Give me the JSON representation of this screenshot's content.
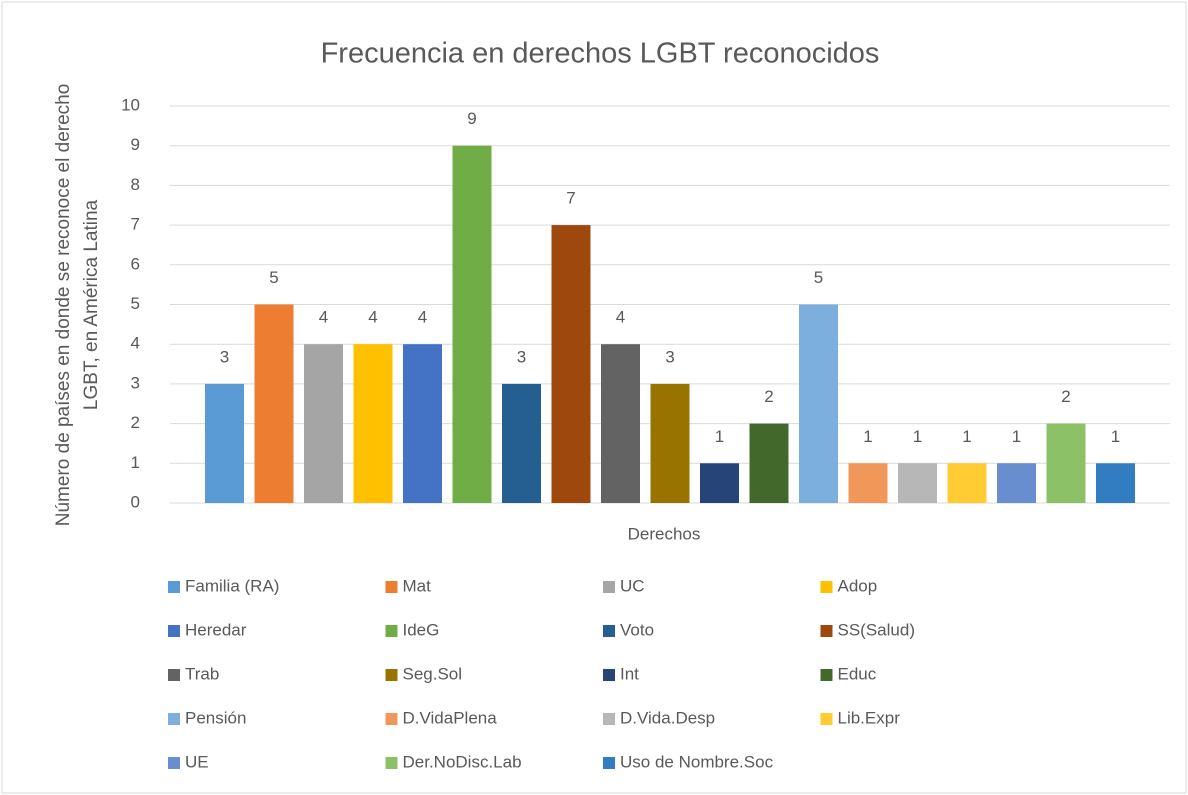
{
  "chart_data": {
    "type": "bar",
    "title": "Frecuencia en derechos LGBT reconocidos",
    "xlabel": "Derechos",
    "ylabel": [
      "Número de países en donde se reconoce el derecho",
      "LGBT, en América Latina"
    ],
    "ylim": [
      0,
      10
    ],
    "yticks": [
      0,
      1,
      2,
      3,
      4,
      5,
      6,
      7,
      8,
      9,
      10
    ],
    "grid": true,
    "legend": "bottom",
    "series": [
      {
        "name": "Familia (RA)",
        "color": "#5b9bd5",
        "values": [
          3
        ]
      },
      {
        "name": "Mat",
        "color": "#ed7d31",
        "values": [
          5
        ]
      },
      {
        "name": "UC",
        "color": "#a5a5a5",
        "values": [
          4
        ]
      },
      {
        "name": "Adop",
        "color": "#ffc000",
        "values": [
          4
        ]
      },
      {
        "name": "Heredar",
        "color": "#4472c4",
        "values": [
          4
        ]
      },
      {
        "name": "IdeG",
        "color": "#70ad47",
        "values": [
          9
        ]
      },
      {
        "name": "Voto",
        "color": "#255e91",
        "values": [
          3
        ]
      },
      {
        "name": "SS(Salud)",
        "color": "#9e480e",
        "values": [
          7
        ]
      },
      {
        "name": "Trab",
        "color": "#636363",
        "values": [
          4
        ]
      },
      {
        "name": "Seg.Sol",
        "color": "#997300",
        "values": [
          3
        ]
      },
      {
        "name": "Int",
        "color": "#264478",
        "values": [
          1
        ]
      },
      {
        "name": "Educ",
        "color": "#43682b",
        "values": [
          2
        ]
      },
      {
        "name": "Pensión",
        "color": "#7cafdd",
        "values": [
          5
        ]
      },
      {
        "name": "D.VidaPlena",
        "color": "#f1975a",
        "values": [
          1
        ]
      },
      {
        "name": "D.Vida.Desp",
        "color": "#b7b7b7",
        "values": [
          1
        ]
      },
      {
        "name": "Lib.Expr",
        "color": "#ffcd33",
        "values": [
          1
        ]
      },
      {
        "name": "UE",
        "color": "#698ed0",
        "values": [
          1
        ]
      },
      {
        "name": "Der.NoDisc.Lab",
        "color": "#8cc168",
        "values": [
          2
        ]
      },
      {
        "name": "Uso de Nombre.Soc",
        "color": "#327dc2",
        "values": [
          1
        ]
      }
    ]
  }
}
